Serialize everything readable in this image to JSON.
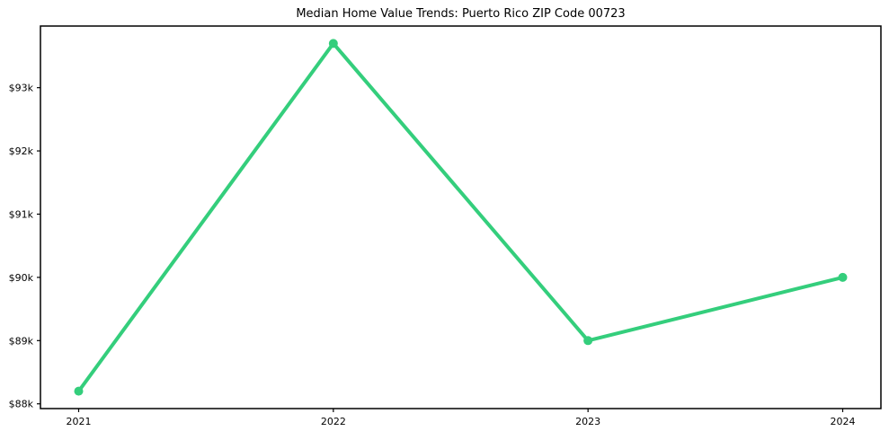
{
  "chart_data": {
    "type": "line",
    "title": "Median Home Value Trends: Puerto Rico ZIP Code 00723",
    "xlabel": "",
    "ylabel": "",
    "x": [
      2021,
      2022,
      2023,
      2024
    ],
    "x_tick_labels": [
      "2021",
      "2022",
      "2023",
      "2024"
    ],
    "values": [
      88200,
      93700,
      89000,
      90000
    ],
    "y_ticks": [
      88000,
      89000,
      90000,
      91000,
      92000,
      93000
    ],
    "y_tick_labels": [
      "$88k",
      "$89k",
      "$90k",
      "$91k",
      "$92k",
      "$93k"
    ],
    "xlim": [
      2020.85,
      2024.15
    ],
    "ylim": [
      87925,
      93975
    ],
    "grid": false,
    "legend": "none",
    "marker": "circle",
    "line_width": 4,
    "marker_radius": 5,
    "line_color": "#34ce7c",
    "axis_color": "#000000",
    "background": "#ffffff"
  }
}
